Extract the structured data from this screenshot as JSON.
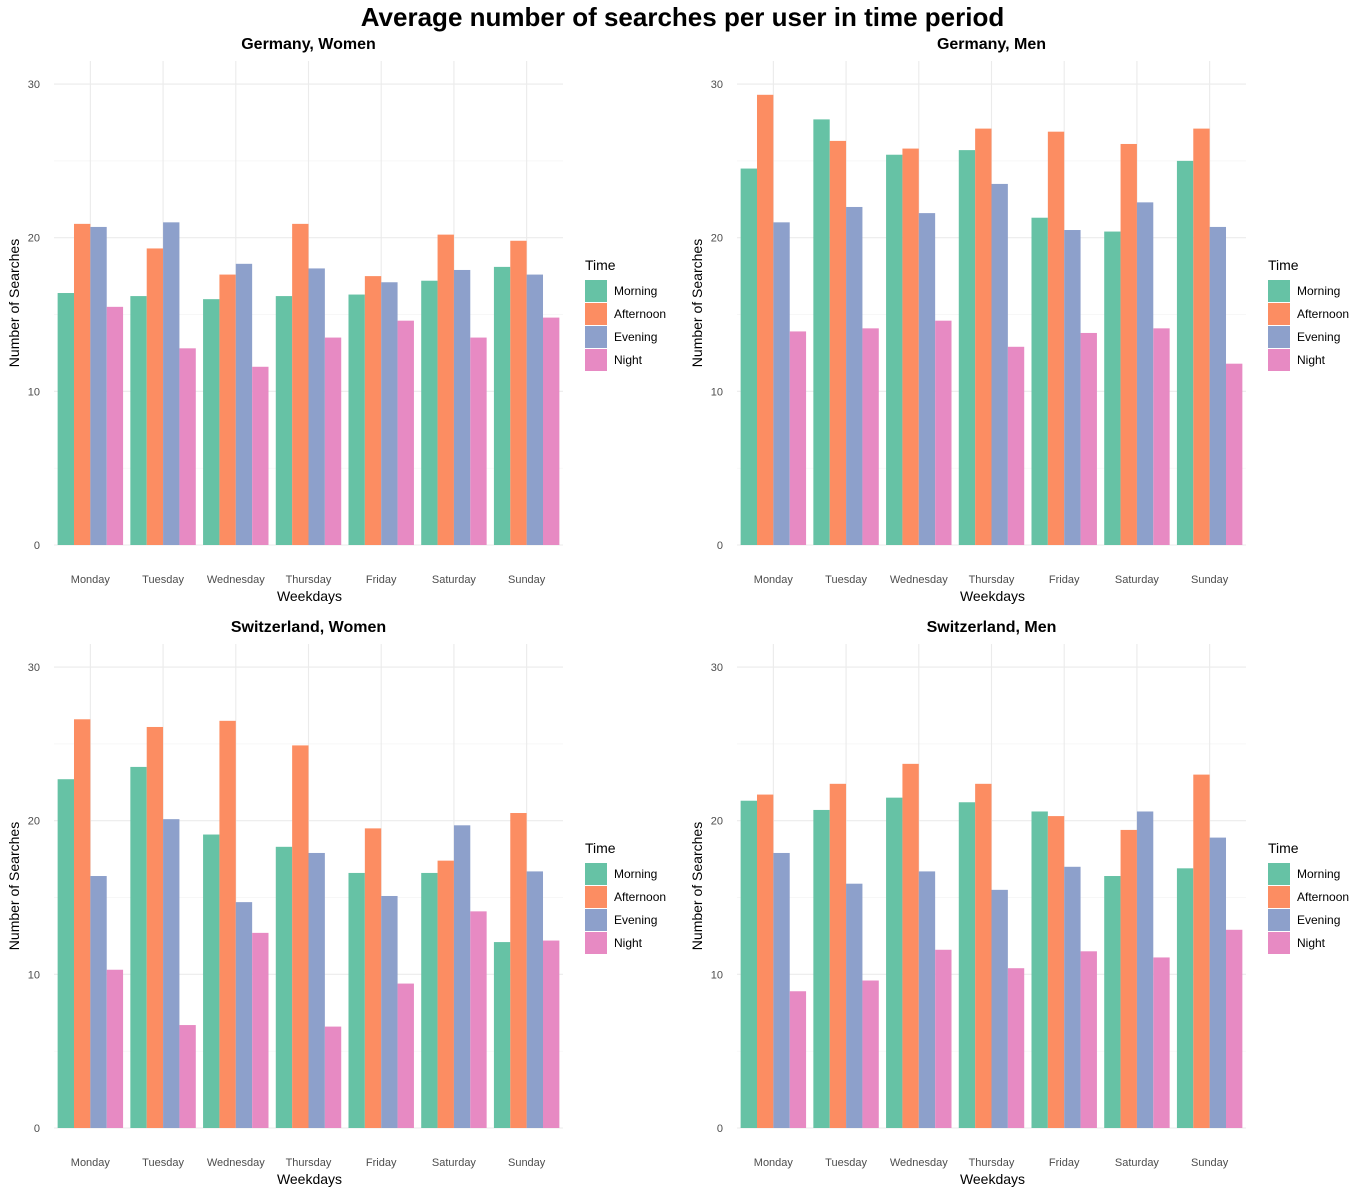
{
  "title": "Average number of searches per user in time period",
  "legend": {
    "title": "Time",
    "items": [
      "Morning",
      "Afternoon",
      "Evening",
      "Night"
    ]
  },
  "colors": {
    "Morning": "#66c2a5",
    "Afternoon": "#fc8d62",
    "Evening": "#8da0cb",
    "Night": "#e78ac3"
  },
  "chart_data": [
    {
      "type": "bar",
      "title": "Germany, Women",
      "xlabel": "Weekdays",
      "ylabel": "Number of Searches",
      "ylim": [
        0,
        31.5
      ],
      "yticks": [
        0,
        10,
        20,
        30
      ],
      "categories": [
        "Monday",
        "Tuesday",
        "Wednesday",
        "Thursday",
        "Friday",
        "Saturday",
        "Sunday"
      ],
      "series": [
        {
          "name": "Morning",
          "values": [
            16.4,
            16.2,
            16.0,
            16.2,
            16.3,
            17.2,
            18.1
          ]
        },
        {
          "name": "Afternoon",
          "values": [
            20.9,
            19.3,
            17.6,
            20.9,
            17.5,
            20.2,
            19.8
          ]
        },
        {
          "name": "Evening",
          "values": [
            20.7,
            21.0,
            18.3,
            18.0,
            17.1,
            17.9,
            17.6
          ]
        },
        {
          "name": "Night",
          "values": [
            15.5,
            12.8,
            11.6,
            13.5,
            14.6,
            13.5,
            14.8
          ]
        }
      ]
    },
    {
      "type": "bar",
      "title": "Germany, Men",
      "xlabel": "Weekdays",
      "ylabel": "Number of Searches",
      "ylim": [
        0,
        31.5
      ],
      "yticks": [
        0,
        10,
        20,
        30
      ],
      "categories": [
        "Monday",
        "Tuesday",
        "Wednesday",
        "Thursday",
        "Friday",
        "Saturday",
        "Sunday"
      ],
      "series": [
        {
          "name": "Morning",
          "values": [
            24.5,
            27.7,
            25.4,
            25.7,
            21.3,
            20.4,
            25.0
          ]
        },
        {
          "name": "Afternoon",
          "values": [
            29.3,
            26.3,
            25.8,
            27.1,
            26.9,
            26.1,
            27.1
          ]
        },
        {
          "name": "Evening",
          "values": [
            21.0,
            22.0,
            21.6,
            23.5,
            20.5,
            22.3,
            20.7
          ]
        },
        {
          "name": "Night",
          "values": [
            13.9,
            14.1,
            14.6,
            12.9,
            13.8,
            14.1,
            11.8
          ]
        }
      ]
    },
    {
      "type": "bar",
      "title": "Switzerland, Women",
      "xlabel": "Weekdays",
      "ylabel": "Number of Searches",
      "ylim": [
        0,
        31.5
      ],
      "yticks": [
        0,
        10,
        20,
        30
      ],
      "categories": [
        "Monday",
        "Tuesday",
        "Wednesday",
        "Thursday",
        "Friday",
        "Saturday",
        "Sunday"
      ],
      "series": [
        {
          "name": "Morning",
          "values": [
            22.7,
            23.5,
            19.1,
            18.3,
            16.6,
            16.6,
            12.1
          ]
        },
        {
          "name": "Afternoon",
          "values": [
            26.6,
            26.1,
            26.5,
            24.9,
            19.5,
            17.4,
            20.5
          ]
        },
        {
          "name": "Evening",
          "values": [
            16.4,
            20.1,
            14.7,
            17.9,
            15.1,
            19.7,
            16.7
          ]
        },
        {
          "name": "Night",
          "values": [
            10.3,
            6.7,
            12.7,
            6.6,
            9.4,
            14.1,
            12.2
          ]
        }
      ]
    },
    {
      "type": "bar",
      "title": "Switzerland, Men",
      "xlabel": "Weekdays",
      "ylabel": "Number of Searches",
      "ylim": [
        0,
        31.5
      ],
      "yticks": [
        0,
        10,
        20,
        30
      ],
      "categories": [
        "Monday",
        "Tuesday",
        "Wednesday",
        "Thursday",
        "Friday",
        "Saturday",
        "Sunday"
      ],
      "series": [
        {
          "name": "Morning",
          "values": [
            21.3,
            20.7,
            21.5,
            21.2,
            20.6,
            16.4,
            16.9
          ]
        },
        {
          "name": "Afternoon",
          "values": [
            21.7,
            22.4,
            23.7,
            22.4,
            20.3,
            19.4,
            23.0
          ]
        },
        {
          "name": "Evening",
          "values": [
            17.9,
            15.9,
            16.7,
            15.5,
            17.0,
            20.6,
            18.9
          ]
        },
        {
          "name": "Night",
          "values": [
            8.9,
            9.6,
            11.6,
            10.4,
            11.5,
            11.1,
            12.9
          ]
        }
      ]
    }
  ]
}
